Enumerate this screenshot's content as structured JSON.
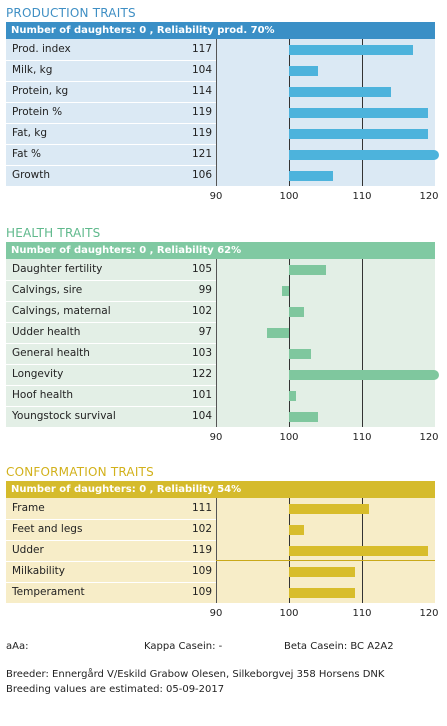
{
  "sections": [
    {
      "key": "prod",
      "title": "PRODUCTION TRAITS",
      "title_color": "#3f8fc4",
      "header": "Number of daughters: 0 , Reliability prod. 70%",
      "header_bg": "#3a8fc6",
      "body_bg": "#dbe9f4",
      "bar_color": "#4db3dc",
      "rows": [
        {
          "label": "Prod. index",
          "value": 117
        },
        {
          "label": "Milk, kg",
          "value": 104
        },
        {
          "label": "Protein, kg",
          "value": 114
        },
        {
          "label": "Protein %",
          "value": 119
        },
        {
          "label": "Fat, kg",
          "value": 119
        },
        {
          "label": "Fat %",
          "value": 121
        },
        {
          "label": "Growth",
          "value": 106
        }
      ]
    },
    {
      "key": "health",
      "title": "HEALTH TRAITS",
      "title_color": "#5fb98c",
      "header": "Number of daughters: 0 , Reliability 62%",
      "header_bg": "#80c9a2",
      "body_bg": "#e3efe6",
      "bar_color": "#7fc79e",
      "rows": [
        {
          "label": "Daughter fertility",
          "value": 105
        },
        {
          "label": "Calvings, sire",
          "value": 99
        },
        {
          "label": "Calvings, maternal",
          "value": 102
        },
        {
          "label": "Udder health",
          "value": 97
        },
        {
          "label": "General health",
          "value": 103
        },
        {
          "label": "Longevity",
          "value": 122
        },
        {
          "label": "Hoof health",
          "value": 101
        },
        {
          "label": "Youngstock survival",
          "value": 104
        }
      ]
    },
    {
      "key": "conf",
      "title": "CONFORMATION TRAITS",
      "title_color": "#d2b11b",
      "header": "Number of daughters: 0 , Reliability 54%",
      "header_bg": "#d5bb2c",
      "body_bg": "#f7edc8",
      "bar_color": "#d8bd2b",
      "rows": [
        {
          "label": "Frame",
          "value": 111
        },
        {
          "label": "Feet and legs",
          "value": 102
        },
        {
          "label": "Udder",
          "value": 119
        },
        {
          "label": "Milkability",
          "value": 109
        },
        {
          "label": "Temperament",
          "value": 109
        }
      ]
    }
  ],
  "axis": {
    "min": 90,
    "max": 120,
    "ticks": [
      "90",
      "100",
      "110",
      "120"
    ]
  },
  "footer": {
    "aaa": "aAa:",
    "kappa": "Kappa Casein: -",
    "beta": "Beta Casein: BC A2A2",
    "breeder": "Breeder: Ennergård V/Eskild Grabow Olesen, Silkeborgvej 358 Horsens DNK",
    "estimated": "Breeding values are estimated: 05-09-2017"
  }
}
